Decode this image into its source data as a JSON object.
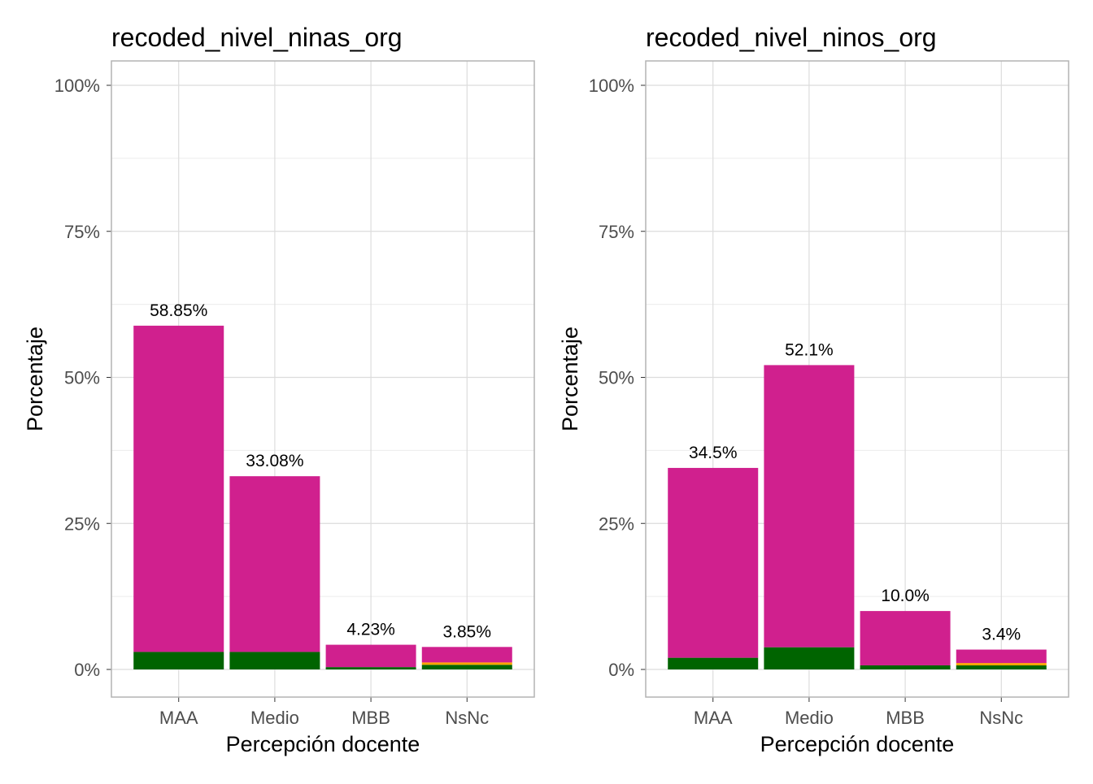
{
  "chart_data": [
    {
      "type": "bar",
      "stacked": true,
      "title": "recoded_nivel_ninas_org",
      "xlabel": "Percepción docente",
      "ylabel": "Porcentaje",
      "categories": [
        "MAA",
        "Medio",
        "MBB",
        "NsNc"
      ],
      "ylim": [
        0,
        100
      ],
      "yticks": [
        "0%",
        "25%",
        "50%",
        "75%",
        "100%"
      ],
      "grid": true,
      "series": [
        {
          "color": "#006400",
          "values": [
            3.0,
            3.0,
            0.4,
            0.8
          ]
        },
        {
          "color": "#FFA500",
          "values": [
            0,
            0,
            0,
            0.4
          ]
        },
        {
          "color": "#D0208E",
          "values": [
            55.85,
            30.08,
            3.83,
            2.65
          ]
        }
      ],
      "totals": [
        58.85,
        33.08,
        4.23,
        3.85
      ],
      "data_labels": [
        "58.85%",
        "33.08%",
        "4.23%",
        "3.85%"
      ]
    },
    {
      "type": "bar",
      "stacked": true,
      "title": "recoded_nivel_ninos_org",
      "xlabel": "Percepción docente",
      "ylabel": "Porcentaje",
      "categories": [
        "MAA",
        "Medio",
        "MBB",
        "NsNc"
      ],
      "ylim": [
        0,
        100
      ],
      "yticks": [
        "0%",
        "25%",
        "50%",
        "75%",
        "100%"
      ],
      "grid": true,
      "series": [
        {
          "color": "#006400",
          "values": [
            2.0,
            3.8,
            0.7,
            0.7
          ]
        },
        {
          "color": "#FFA500",
          "values": [
            0,
            0,
            0,
            0.4
          ]
        },
        {
          "color": "#D0208E",
          "values": [
            32.5,
            48.3,
            9.3,
            2.3
          ]
        }
      ],
      "totals": [
        34.5,
        52.1,
        10.0,
        3.4
      ],
      "data_labels": [
        "34.5%",
        "52.1%",
        "10.0%",
        "3.4%"
      ]
    }
  ]
}
